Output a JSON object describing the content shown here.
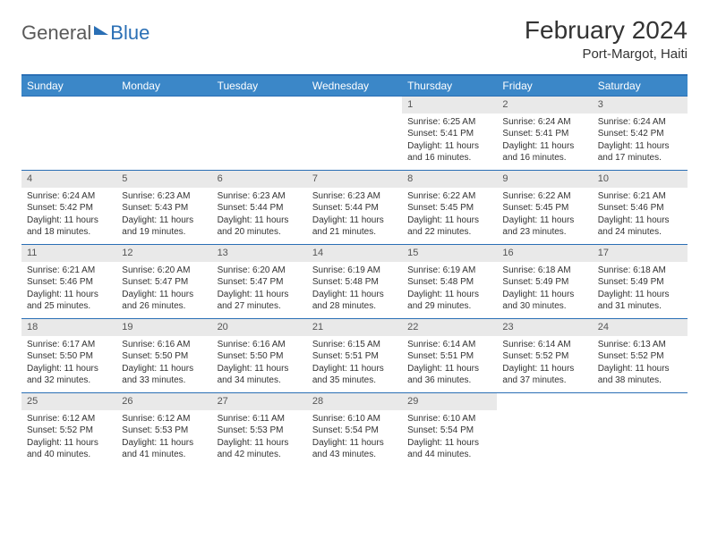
{
  "logo": {
    "part1": "General",
    "part2": "Blue"
  },
  "title": "February 2024",
  "location": "Port-Margot, Haiti",
  "colors": {
    "header_bg": "#3b87c8",
    "border": "#2a6fb5",
    "daynum_bg": "#e9e9e9",
    "text": "#333333"
  },
  "dow": [
    "Sunday",
    "Monday",
    "Tuesday",
    "Wednesday",
    "Thursday",
    "Friday",
    "Saturday"
  ],
  "weeks": [
    [
      null,
      null,
      null,
      null,
      {
        "n": "1",
        "sr": "Sunrise: 6:25 AM",
        "ss": "Sunset: 5:41 PM",
        "dl1": "Daylight: 11 hours",
        "dl2": "and 16 minutes."
      },
      {
        "n": "2",
        "sr": "Sunrise: 6:24 AM",
        "ss": "Sunset: 5:41 PM",
        "dl1": "Daylight: 11 hours",
        "dl2": "and 16 minutes."
      },
      {
        "n": "3",
        "sr": "Sunrise: 6:24 AM",
        "ss": "Sunset: 5:42 PM",
        "dl1": "Daylight: 11 hours",
        "dl2": "and 17 minutes."
      }
    ],
    [
      {
        "n": "4",
        "sr": "Sunrise: 6:24 AM",
        "ss": "Sunset: 5:42 PM",
        "dl1": "Daylight: 11 hours",
        "dl2": "and 18 minutes."
      },
      {
        "n": "5",
        "sr": "Sunrise: 6:23 AM",
        "ss": "Sunset: 5:43 PM",
        "dl1": "Daylight: 11 hours",
        "dl2": "and 19 minutes."
      },
      {
        "n": "6",
        "sr": "Sunrise: 6:23 AM",
        "ss": "Sunset: 5:44 PM",
        "dl1": "Daylight: 11 hours",
        "dl2": "and 20 minutes."
      },
      {
        "n": "7",
        "sr": "Sunrise: 6:23 AM",
        "ss": "Sunset: 5:44 PM",
        "dl1": "Daylight: 11 hours",
        "dl2": "and 21 minutes."
      },
      {
        "n": "8",
        "sr": "Sunrise: 6:22 AM",
        "ss": "Sunset: 5:45 PM",
        "dl1": "Daylight: 11 hours",
        "dl2": "and 22 minutes."
      },
      {
        "n": "9",
        "sr": "Sunrise: 6:22 AM",
        "ss": "Sunset: 5:45 PM",
        "dl1": "Daylight: 11 hours",
        "dl2": "and 23 minutes."
      },
      {
        "n": "10",
        "sr": "Sunrise: 6:21 AM",
        "ss": "Sunset: 5:46 PM",
        "dl1": "Daylight: 11 hours",
        "dl2": "and 24 minutes."
      }
    ],
    [
      {
        "n": "11",
        "sr": "Sunrise: 6:21 AM",
        "ss": "Sunset: 5:46 PM",
        "dl1": "Daylight: 11 hours",
        "dl2": "and 25 minutes."
      },
      {
        "n": "12",
        "sr": "Sunrise: 6:20 AM",
        "ss": "Sunset: 5:47 PM",
        "dl1": "Daylight: 11 hours",
        "dl2": "and 26 minutes."
      },
      {
        "n": "13",
        "sr": "Sunrise: 6:20 AM",
        "ss": "Sunset: 5:47 PM",
        "dl1": "Daylight: 11 hours",
        "dl2": "and 27 minutes."
      },
      {
        "n": "14",
        "sr": "Sunrise: 6:19 AM",
        "ss": "Sunset: 5:48 PM",
        "dl1": "Daylight: 11 hours",
        "dl2": "and 28 minutes."
      },
      {
        "n": "15",
        "sr": "Sunrise: 6:19 AM",
        "ss": "Sunset: 5:48 PM",
        "dl1": "Daylight: 11 hours",
        "dl2": "and 29 minutes."
      },
      {
        "n": "16",
        "sr": "Sunrise: 6:18 AM",
        "ss": "Sunset: 5:49 PM",
        "dl1": "Daylight: 11 hours",
        "dl2": "and 30 minutes."
      },
      {
        "n": "17",
        "sr": "Sunrise: 6:18 AM",
        "ss": "Sunset: 5:49 PM",
        "dl1": "Daylight: 11 hours",
        "dl2": "and 31 minutes."
      }
    ],
    [
      {
        "n": "18",
        "sr": "Sunrise: 6:17 AM",
        "ss": "Sunset: 5:50 PM",
        "dl1": "Daylight: 11 hours",
        "dl2": "and 32 minutes."
      },
      {
        "n": "19",
        "sr": "Sunrise: 6:16 AM",
        "ss": "Sunset: 5:50 PM",
        "dl1": "Daylight: 11 hours",
        "dl2": "and 33 minutes."
      },
      {
        "n": "20",
        "sr": "Sunrise: 6:16 AM",
        "ss": "Sunset: 5:50 PM",
        "dl1": "Daylight: 11 hours",
        "dl2": "and 34 minutes."
      },
      {
        "n": "21",
        "sr": "Sunrise: 6:15 AM",
        "ss": "Sunset: 5:51 PM",
        "dl1": "Daylight: 11 hours",
        "dl2": "and 35 minutes."
      },
      {
        "n": "22",
        "sr": "Sunrise: 6:14 AM",
        "ss": "Sunset: 5:51 PM",
        "dl1": "Daylight: 11 hours",
        "dl2": "and 36 minutes."
      },
      {
        "n": "23",
        "sr": "Sunrise: 6:14 AM",
        "ss": "Sunset: 5:52 PM",
        "dl1": "Daylight: 11 hours",
        "dl2": "and 37 minutes."
      },
      {
        "n": "24",
        "sr": "Sunrise: 6:13 AM",
        "ss": "Sunset: 5:52 PM",
        "dl1": "Daylight: 11 hours",
        "dl2": "and 38 minutes."
      }
    ],
    [
      {
        "n": "25",
        "sr": "Sunrise: 6:12 AM",
        "ss": "Sunset: 5:52 PM",
        "dl1": "Daylight: 11 hours",
        "dl2": "and 40 minutes."
      },
      {
        "n": "26",
        "sr": "Sunrise: 6:12 AM",
        "ss": "Sunset: 5:53 PM",
        "dl1": "Daylight: 11 hours",
        "dl2": "and 41 minutes."
      },
      {
        "n": "27",
        "sr": "Sunrise: 6:11 AM",
        "ss": "Sunset: 5:53 PM",
        "dl1": "Daylight: 11 hours",
        "dl2": "and 42 minutes."
      },
      {
        "n": "28",
        "sr": "Sunrise: 6:10 AM",
        "ss": "Sunset: 5:54 PM",
        "dl1": "Daylight: 11 hours",
        "dl2": "and 43 minutes."
      },
      {
        "n": "29",
        "sr": "Sunrise: 6:10 AM",
        "ss": "Sunset: 5:54 PM",
        "dl1": "Daylight: 11 hours",
        "dl2": "and 44 minutes."
      },
      null,
      null
    ]
  ]
}
